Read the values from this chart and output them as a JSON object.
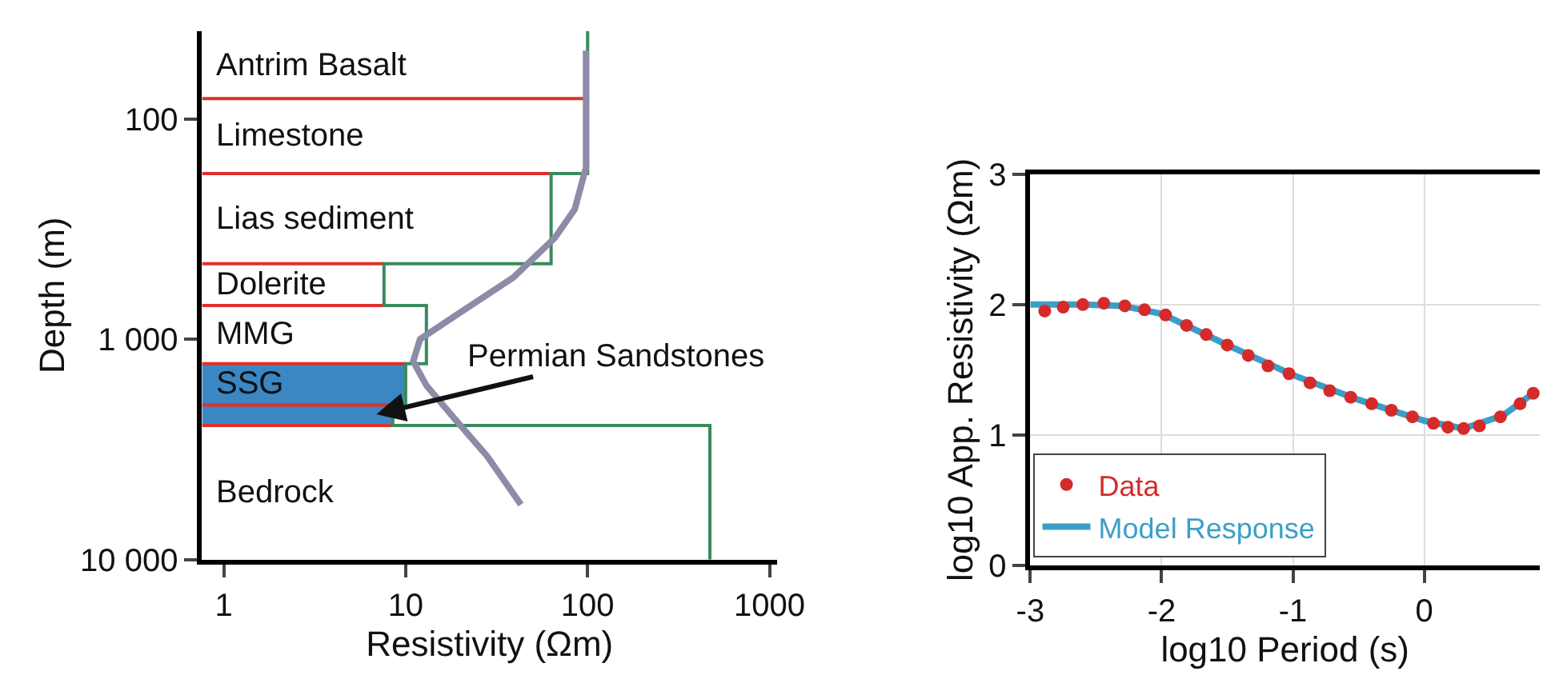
{
  "chart_data": [
    {
      "type": "line",
      "xlabel": "Resistivity (Ωm)",
      "ylabel": "Depth (m)",
      "log": "xy",
      "grid": false,
      "xlim": [
        0.76,
        1100
      ],
      "xticks": [
        1,
        10,
        100,
        1000
      ],
      "ylim": [
        10000,
        40
      ],
      "yticks": [
        {
          "value": 100,
          "label": "100"
        },
        {
          "value": 1000,
          "label": "1 000"
        },
        {
          "value": 10000,
          "label": "10 000"
        }
      ],
      "series": [
        {
          "type": "step",
          "color": "#3a8a5c",
          "x": [
            100,
            100,
            63,
            63,
            7.6,
            7.6,
            13,
            13,
            10,
            10,
            8.5,
            8.5,
            470,
            470
          ],
          "values": [
            40,
            177,
            177,
            454,
            454,
            703,
            703,
            1290,
            1290,
            1990,
            1990,
            2460,
            2460,
            10000
          ]
        },
        {
          "color": "#8c8ca8",
          "x": [
            98,
            98,
            85,
            66,
            39,
            19,
            12,
            11,
            13,
            19,
            28,
            43
          ],
          "values": [
            49,
            166,
            257,
            347,
            525,
            776,
            1000,
            1259,
            1622,
            2344,
            3388,
            5623
          ]
        }
      ],
      "bands": [
        {
          "axis": "y",
          "from": 1290,
          "to": 1990,
          "label": "SSG",
          "color": "#3a87c4"
        },
        {
          "axis": "y",
          "from": 1990,
          "to": 2460,
          "label": null,
          "color": "#3a87c4"
        }
      ],
      "ref_lines": [
        {
          "axis": "y",
          "value": 81,
          "color": "#e0302a"
        },
        {
          "axis": "y",
          "value": 177,
          "color": "#e0302a"
        },
        {
          "axis": "y",
          "value": 454,
          "color": "#e0302a"
        },
        {
          "axis": "y",
          "value": 703,
          "color": "#e0302a"
        },
        {
          "axis": "y",
          "value": 1290,
          "color": "#e0302a"
        },
        {
          "axis": "y",
          "value": 1990,
          "color": "#e0302a"
        },
        {
          "axis": "y",
          "value": 2460,
          "color": "#e0302a"
        }
      ],
      "annotations": [
        "Antrim Basalt",
        "Limestone",
        "Lias sediment",
        "Dolerite",
        "MMG",
        "Bedrock",
        {
          "text": "Permian Sandstones",
          "x": 6.9,
          "y": 2190
        }
      ]
    },
    {
      "type": "line",
      "xlabel": "log10 Period (s)",
      "ylabel": "log10 App. Resistivity (Ωm)",
      "grid": true,
      "legend": "bottom left",
      "xlim": [
        -3,
        0.88
      ],
      "xticks": [
        -3,
        -2,
        -1,
        0
      ],
      "ylim": [
        0,
        3
      ],
      "yticks": [
        0,
        1,
        2,
        3
      ],
      "series": [
        {
          "name": "Model Response",
          "color": "#3a9fc8",
          "x": [
            -3,
            -2.6,
            -2.3,
            -2.0,
            -1.5,
            -1.0,
            -0.5,
            0,
            0.3,
            0.6,
            0.83
          ],
          "values": [
            2.0,
            2.0,
            1.99,
            1.93,
            1.69,
            1.46,
            1.27,
            1.11,
            1.05,
            1.15,
            1.32
          ]
        },
        {
          "name": "Data",
          "type": "scatter",
          "marker": "circle",
          "color": "#d42a2a",
          "x": [
            -2.89,
            -2.75,
            -2.6,
            -2.44,
            -2.28,
            -2.13,
            -1.97,
            -1.81,
            -1.66,
            -1.5,
            -1.34,
            -1.19,
            -1.03,
            -0.87,
            -0.72,
            -0.56,
            -0.4,
            -0.25,
            -0.09,
            0.07,
            0.18,
            0.3,
            0.42,
            0.58,
            0.73,
            0.83
          ],
          "values": [
            1.95,
            1.98,
            2.0,
            2.01,
            1.99,
            1.96,
            1.92,
            1.84,
            1.77,
            1.69,
            1.61,
            1.53,
            1.47,
            1.4,
            1.34,
            1.29,
            1.24,
            1.19,
            1.14,
            1.09,
            1.06,
            1.05,
            1.07,
            1.14,
            1.24,
            1.32
          ]
        }
      ]
    }
  ]
}
